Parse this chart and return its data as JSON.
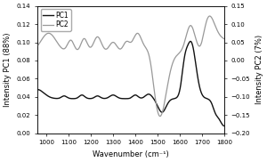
{
  "xlabel": "Wavenumber (cm⁻¹)",
  "ylabel_left": "Intensity PC1 (88%)",
  "ylabel_right": "Intensity PC2 (7%)",
  "xlim": [
    1800,
    960
  ],
  "ylim_left": [
    0.0,
    0.14
  ],
  "ylim_right": [
    -0.2,
    0.15
  ],
  "yticks_left": [
    0.0,
    0.02,
    0.04,
    0.06,
    0.08,
    0.1,
    0.12,
    0.14
  ],
  "yticks_right": [
    -0.2,
    -0.15,
    -0.1,
    -0.05,
    0.0,
    0.05,
    0.1,
    0.15
  ],
  "xticks": [
    1800,
    1700,
    1600,
    1500,
    1400,
    1300,
    1200,
    1100,
    1000
  ],
  "legend_labels": [
    "PC1",
    "PC2"
  ],
  "pc1_color": "#111111",
  "pc2_color": "#999999",
  "background": "#ffffff"
}
